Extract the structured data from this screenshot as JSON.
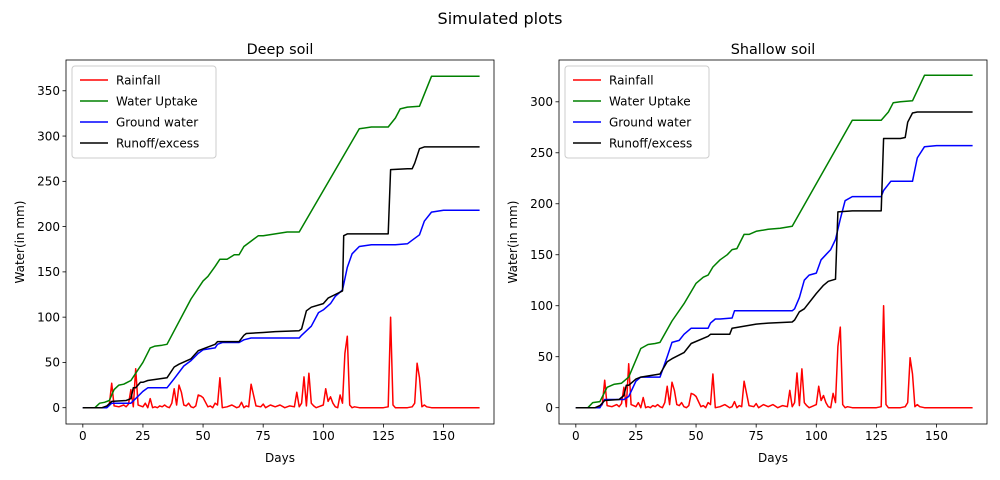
{
  "figure": {
    "suptitle": "Simulated plots"
  },
  "colors": {
    "Rainfall": "#ff0000",
    "Water Uptake": "#008000",
    "Ground water": "#0000ff",
    "Runoff/excess": "#000000"
  },
  "chart_data": [
    {
      "type": "line",
      "title": "Deep soil",
      "xlabel": "Days",
      "ylabel": "Water(in mm)",
      "xlim": [
        -7,
        171
      ],
      "ylim": [
        -18,
        384
      ],
      "xticks": [
        0,
        25,
        50,
        75,
        100,
        125,
        150
      ],
      "yticks": [
        0,
        50,
        100,
        150,
        200,
        250,
        300,
        350
      ],
      "grid": false,
      "legend": {
        "placement": "upper-left",
        "entries": [
          "Rainfall",
          "Water Uptake",
          "Ground water",
          "Runoff/excess"
        ]
      },
      "series": [
        {
          "name": "Rainfall",
          "color": "#ff0000",
          "x": [
            0,
            5,
            8,
            10,
            11,
            12,
            13,
            15,
            17,
            18,
            19,
            20,
            21,
            22,
            23,
            24,
            25,
            26,
            27,
            28,
            29,
            30,
            31,
            32,
            33,
            34,
            35,
            36,
            37,
            38,
            39,
            40,
            41,
            42,
            43,
            44,
            45,
            46,
            47,
            48,
            49,
            50,
            52,
            53,
            54,
            55,
            56,
            57,
            58,
            60,
            62,
            64,
            65,
            66,
            67,
            68,
            69,
            70,
            72,
            74,
            75,
            76,
            78,
            80,
            82,
            84,
            86,
            88,
            89,
            90,
            91,
            92,
            93,
            94,
            95,
            96,
            97,
            98,
            100,
            101,
            102,
            103,
            104,
            105,
            106,
            107,
            108,
            109,
            110,
            111,
            112,
            113,
            115,
            120,
            125,
            127,
            128,
            129,
            130,
            133,
            135,
            137,
            138,
            139,
            140,
            141,
            142,
            143,
            145,
            150,
            155,
            160,
            165
          ],
          "y": [
            0,
            0,
            0,
            1,
            3,
            27,
            2,
            1,
            3,
            1,
            4,
            20,
            1,
            43,
            3,
            2,
            1,
            5,
            0,
            10,
            0,
            1,
            0,
            2,
            1,
            3,
            1,
            0,
            5,
            21,
            3,
            25,
            17,
            3,
            2,
            5,
            1,
            0,
            2,
            14,
            13,
            11,
            1,
            2,
            0,
            5,
            3,
            33,
            0,
            1,
            3,
            0,
            1,
            6,
            0,
            2,
            1,
            26,
            2,
            1,
            4,
            0,
            3,
            1,
            3,
            0,
            2,
            1,
            17,
            1,
            5,
            34,
            2,
            38,
            5,
            2,
            0,
            1,
            3,
            21,
            7,
            12,
            5,
            1,
            0,
            14,
            5,
            60,
            79,
            3,
            0,
            1,
            0,
            0,
            0,
            1,
            100,
            3,
            0,
            0,
            0,
            1,
            5,
            49,
            33,
            1,
            3,
            1,
            0,
            0,
            0,
            0,
            0
          ]
        },
        {
          "name": "Water Uptake",
          "color": "#008000",
          "x": [
            0,
            5,
            7,
            9,
            11,
            13,
            15,
            17,
            20,
            25,
            28,
            30,
            33,
            35,
            45,
            50,
            52,
            55,
            57,
            60,
            63,
            65,
            67,
            70,
            73,
            75,
            80,
            85,
            89,
            90,
            115,
            120,
            127,
            130,
            132,
            135,
            140,
            145,
            165
          ],
          "y": [
            0,
            0,
            5,
            6,
            8,
            20,
            25,
            26,
            30,
            50,
            66,
            68,
            69,
            70,
            120,
            140,
            145,
            156,
            164,
            164,
            169,
            169,
            178,
            184,
            190,
            190,
            192,
            194,
            194,
            194,
            308,
            310,
            310,
            320,
            330,
            332,
            333,
            366,
            366
          ]
        },
        {
          "name": "Ground water",
          "color": "#0000ff",
          "x": [
            0,
            10,
            12,
            20,
            22,
            25,
            27,
            35,
            38,
            42,
            45,
            48,
            50,
            55,
            56,
            58,
            60,
            65,
            67,
            70,
            85,
            90,
            91,
            95,
            98,
            100,
            103,
            105,
            108,
            110,
            112,
            115,
            120,
            125,
            130,
            135,
            137,
            140,
            142,
            145,
            150,
            165
          ],
          "y": [
            0,
            0,
            5,
            5,
            10,
            18,
            22,
            22,
            32,
            46,
            52,
            60,
            64,
            66,
            70,
            72,
            72,
            72,
            75,
            77,
            77,
            77,
            80,
            90,
            105,
            108,
            115,
            123,
            130,
            155,
            170,
            178,
            180,
            180,
            180,
            181,
            185,
            191,
            206,
            216,
            218,
            218
          ]
        },
        {
          "name": "Runoff/excess",
          "color": "#000000",
          "x": [
            0,
            8,
            10,
            12,
            18,
            20,
            21,
            22,
            24,
            25,
            26,
            27,
            35,
            38,
            40,
            45,
            48,
            55,
            56,
            60,
            65,
            67,
            68,
            75,
            80,
            90,
            91,
            93,
            95,
            100,
            102,
            105,
            108,
            108.5,
            110,
            115,
            127,
            128,
            135,
            137,
            138,
            140,
            142,
            145,
            150,
            165
          ],
          "y": [
            0,
            0,
            2,
            7,
            8,
            10,
            22,
            22,
            28,
            28,
            29,
            30,
            33,
            45,
            48,
            54,
            63,
            70,
            73,
            73,
            73,
            80,
            82,
            83,
            84,
            85,
            87,
            107,
            111,
            115,
            121,
            125,
            129,
            190,
            192,
            192,
            192,
            263,
            264,
            264,
            270,
            286,
            288,
            288,
            288,
            288
          ]
        }
      ]
    },
    {
      "type": "line",
      "title": "Shallow soil",
      "xlabel": "Days",
      "ylabel": "Water(in mm)",
      "xlim": [
        -7,
        171
      ],
      "ylim": [
        -16,
        341
      ],
      "xticks": [
        0,
        25,
        50,
        75,
        100,
        125,
        150
      ],
      "yticks": [
        0,
        50,
        100,
        150,
        200,
        250,
        300
      ],
      "grid": false,
      "legend": {
        "placement": "upper-left",
        "entries": [
          "Rainfall",
          "Water Uptake",
          "Ground water",
          "Runoff/excess"
        ]
      },
      "series": [
        {
          "name": "Rainfall",
          "color": "#ff0000",
          "x": [
            0,
            5,
            8,
            10,
            11,
            12,
            13,
            15,
            17,
            18,
            19,
            20,
            21,
            22,
            23,
            24,
            25,
            26,
            27,
            28,
            29,
            30,
            31,
            32,
            33,
            34,
            35,
            36,
            37,
            38,
            39,
            40,
            41,
            42,
            43,
            44,
            45,
            46,
            47,
            48,
            49,
            50,
            52,
            53,
            54,
            55,
            56,
            57,
            58,
            60,
            62,
            64,
            65,
            66,
            67,
            68,
            69,
            70,
            72,
            74,
            75,
            76,
            78,
            80,
            82,
            84,
            86,
            88,
            89,
            90,
            91,
            92,
            93,
            94,
            95,
            96,
            97,
            98,
            100,
            101,
            102,
            103,
            104,
            105,
            106,
            107,
            108,
            109,
            110,
            111,
            112,
            113,
            115,
            120,
            125,
            127,
            128,
            129,
            130,
            133,
            135,
            137,
            138,
            139,
            140,
            141,
            142,
            143,
            145,
            150,
            155,
            160,
            165
          ],
          "y": [
            0,
            0,
            0,
            1,
            3,
            27,
            2,
            1,
            3,
            1,
            4,
            20,
            1,
            43,
            3,
            2,
            1,
            5,
            0,
            10,
            0,
            1,
            0,
            2,
            1,
            3,
            1,
            0,
            5,
            21,
            3,
            25,
            17,
            3,
            2,
            5,
            1,
            0,
            2,
            14,
            13,
            11,
            1,
            2,
            0,
            5,
            3,
            33,
            0,
            1,
            3,
            0,
            1,
            6,
            0,
            2,
            1,
            26,
            2,
            1,
            4,
            0,
            3,
            1,
            3,
            0,
            2,
            1,
            17,
            1,
            5,
            34,
            2,
            38,
            5,
            2,
            0,
            1,
            3,
            21,
            7,
            12,
            5,
            1,
            0,
            14,
            5,
            60,
            79,
            3,
            0,
            1,
            0,
            0,
            0,
            1,
            100,
            3,
            0,
            0,
            0,
            1,
            5,
            49,
            33,
            1,
            3,
            1,
            0,
            0,
            0,
            0,
            0
          ]
        },
        {
          "name": "Water Uptake",
          "color": "#008000",
          "x": [
            0,
            5,
            7,
            10,
            13,
            16,
            19,
            22,
            27,
            30,
            33,
            35,
            40,
            45,
            50,
            53,
            55,
            57,
            60,
            63,
            65,
            67,
            70,
            72,
            75,
            80,
            85,
            90,
            115,
            120,
            127,
            130,
            132,
            135,
            140,
            145,
            165
          ],
          "y": [
            0,
            0,
            5,
            6,
            20,
            23,
            24,
            30,
            58,
            62,
            63,
            64,
            85,
            102,
            122,
            128,
            130,
            138,
            145,
            150,
            155,
            156,
            170,
            170,
            173,
            175,
            176,
            178,
            282,
            282,
            282,
            290,
            299,
            300,
            301,
            326,
            326
          ]
        },
        {
          "name": "Ground water",
          "color": "#0000ff",
          "x": [
            0,
            10,
            12,
            20,
            22,
            25,
            27,
            35,
            38,
            40,
            43,
            45,
            48,
            50,
            55,
            56,
            58,
            60,
            65,
            66,
            75,
            90,
            91,
            93,
            95,
            97,
            100,
            102,
            104,
            106,
            108,
            110,
            112,
            115,
            120,
            127,
            128,
            131,
            135,
            140,
            142,
            145,
            150,
            165
          ],
          "y": [
            0,
            0,
            8,
            8,
            11,
            26,
            30,
            30,
            50,
            64,
            66,
            72,
            78,
            78,
            78,
            83,
            87,
            87,
            88,
            95,
            95,
            95,
            97,
            108,
            125,
            130,
            132,
            145,
            150,
            155,
            165,
            185,
            203,
            207,
            207,
            207,
            213,
            222,
            222,
            222,
            245,
            256,
            257,
            257
          ]
        },
        {
          "name": "Runoff/excess",
          "color": "#000000",
          "x": [
            0,
            8,
            10,
            12,
            18,
            20,
            21,
            22,
            25,
            27,
            35,
            38,
            40,
            45,
            48,
            55,
            56,
            62,
            64,
            65,
            75,
            80,
            90,
            91,
            93,
            95,
            100,
            103,
            105,
            108,
            109,
            115,
            127,
            128,
            135,
            137,
            138,
            140,
            142,
            145,
            150,
            165
          ],
          "y": [
            0,
            0,
            2,
            7,
            8,
            12,
            22,
            22,
            28,
            30,
            33,
            45,
            48,
            54,
            63,
            70,
            72,
            72,
            72,
            78,
            82,
            83,
            84,
            86,
            94,
            97,
            112,
            120,
            124,
            126,
            192,
            193,
            193,
            264,
            264,
            265,
            280,
            289,
            290,
            290,
            290,
            290
          ]
        }
      ]
    }
  ]
}
